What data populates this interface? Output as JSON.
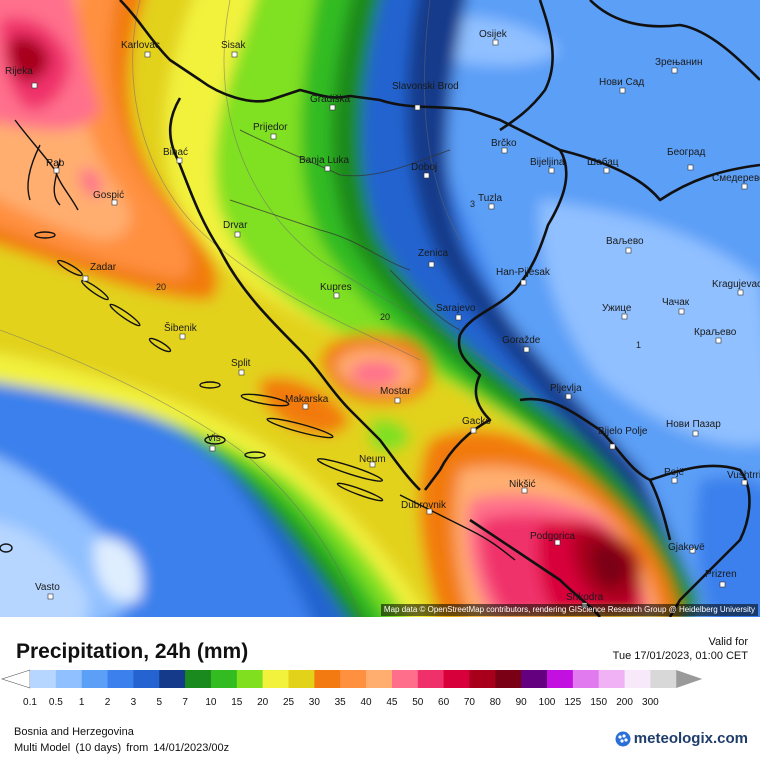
{
  "title": "Precipitation, 24h (mm)",
  "valid": {
    "label": "Valid for",
    "datetime": "Tue 17/01/2023, 01:00 CET"
  },
  "region": "Bosnia and Herzegovina",
  "model": {
    "name": "Multi Model",
    "range": "(10 days)",
    "from_label": "from",
    "run": "14/01/2023/00z"
  },
  "brand": "meteologix.com",
  "attribution": "Map data © OpenStreetMap contributors, rendering GIScience Research Group @ Heidelberg University",
  "scale": {
    "values": [
      "0.1",
      "0.5",
      "1",
      "2",
      "3",
      "5",
      "7",
      "10",
      "15",
      "20",
      "25",
      "30",
      "35",
      "40",
      "45",
      "50",
      "60",
      "70",
      "80",
      "90",
      "100",
      "125",
      "150",
      "200",
      "300"
    ],
    "colors": [
      "#b6d6ff",
      "#90c0ff",
      "#5c9ff7",
      "#3b80ec",
      "#2463d0",
      "#163a8a",
      "#1b8a1e",
      "#33bb22",
      "#80e020",
      "#f2f23c",
      "#e2d21a",
      "#f27a10",
      "#ff9040",
      "#ffae70",
      "#ff6f8c",
      "#f0306a",
      "#d8003a",
      "#a8001c",
      "#7a0016",
      "#640080",
      "#c210e0",
      "#e07aee",
      "#f0b2f4",
      "#f7e8fa",
      "#d8d8d8"
    ]
  },
  "contour_labels": [
    "20",
    "20",
    "1",
    "3"
  ],
  "cities": [
    {
      "name": "Rijeka"
    },
    {
      "name": "Karlovac"
    },
    {
      "name": "Sisak"
    },
    {
      "name": "Osijek"
    },
    {
      "name": "Нови Сад"
    },
    {
      "name": "Зрењанин"
    },
    {
      "name": "Gradiška"
    },
    {
      "name": "Slavonski Brod"
    },
    {
      "name": "Prijedor"
    },
    {
      "name": "Banja Luka"
    },
    {
      "name": "Rab"
    },
    {
      "name": "Bihać"
    },
    {
      "name": "Gospić"
    },
    {
      "name": "Doboj"
    },
    {
      "name": "Brčko"
    },
    {
      "name": "Bijeljina"
    },
    {
      "name": "Шабац"
    },
    {
      "name": "Београд"
    },
    {
      "name": "Смедерево"
    },
    {
      "name": "Tuzla"
    },
    {
      "name": "Drvar"
    },
    {
      "name": "Zenica"
    },
    {
      "name": "Ваљево"
    },
    {
      "name": "Zadar"
    },
    {
      "name": "Han-Pijesak"
    },
    {
      "name": "Kragujevac"
    },
    {
      "name": "Kupres"
    },
    {
      "name": "Sarajevo"
    },
    {
      "name": "Ужице"
    },
    {
      "name": "Чачак"
    },
    {
      "name": "Šibenik"
    },
    {
      "name": "Краљево"
    },
    {
      "name": "Goražde"
    },
    {
      "name": "Split"
    },
    {
      "name": "Mostar"
    },
    {
      "name": "Pljevlja"
    },
    {
      "name": "Makarska"
    },
    {
      "name": "Нови Пазар"
    },
    {
      "name": "Vis"
    },
    {
      "name": "Gacko"
    },
    {
      "name": "Bijelo Polje"
    },
    {
      "name": "Neum"
    },
    {
      "name": "Vushtrri"
    },
    {
      "name": "Nikšić"
    },
    {
      "name": "Pejë"
    },
    {
      "name": "Dubrovnik"
    },
    {
      "name": "Podgorica"
    },
    {
      "name": "Gjakovë"
    },
    {
      "name": "Prizren"
    },
    {
      "name": "Vasto"
    },
    {
      "name": "Shkodra"
    }
  ]
}
